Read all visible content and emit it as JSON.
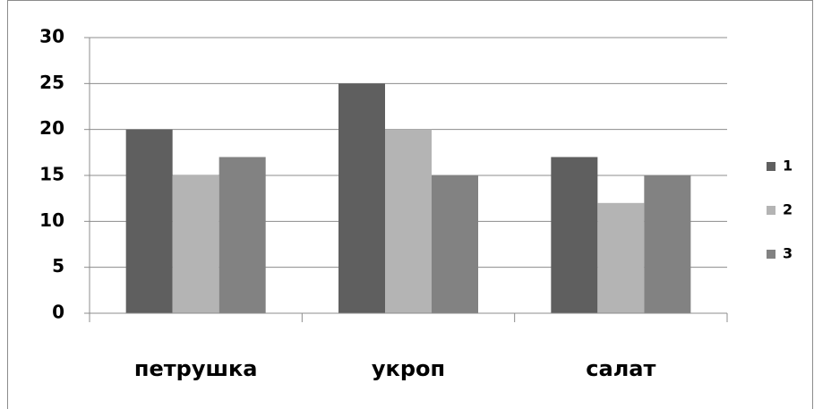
{
  "chart_data": {
    "type": "bar",
    "categories": [
      "петрушка",
      "укроп",
      "салат"
    ],
    "series": [
      {
        "name": "1",
        "color": "#5f5f5f",
        "values": [
          20,
          25,
          17
        ]
      },
      {
        "name": "2",
        "color": "#b4b4b4",
        "values": [
          15,
          20,
          12
        ]
      },
      {
        "name": "3",
        "color": "#828282",
        "values": [
          17,
          15,
          15
        ]
      }
    ],
    "ylim": [
      0,
      30
    ],
    "yticks": [
      0,
      5,
      10,
      15,
      20,
      25,
      30
    ],
    "grid": true,
    "legend": "right"
  }
}
